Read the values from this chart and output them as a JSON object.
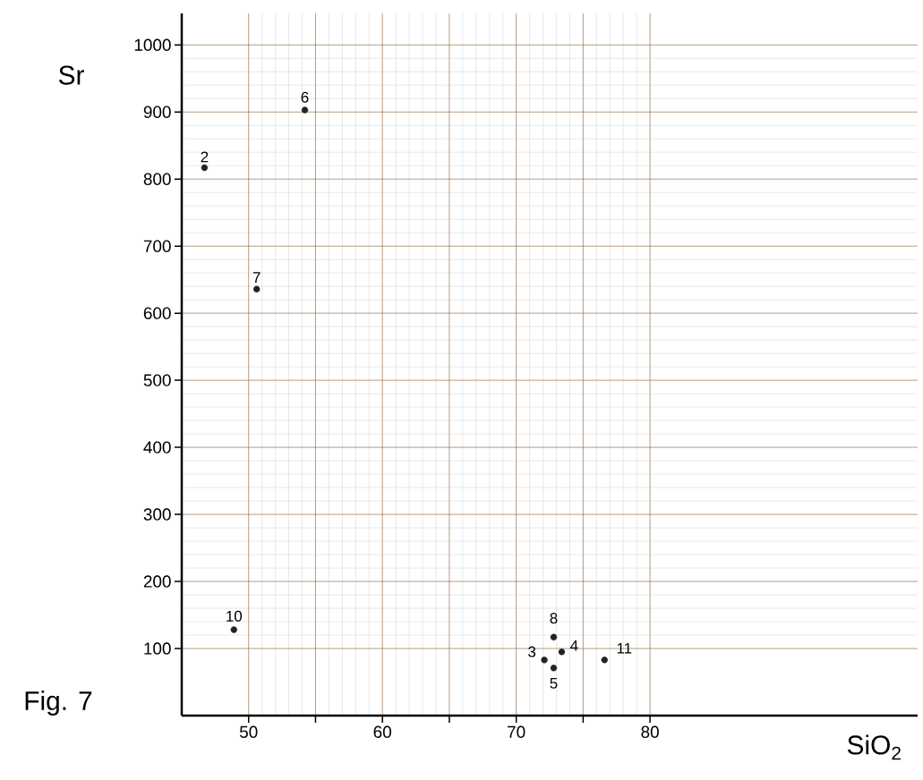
{
  "chart_data": {
    "type": "scatter",
    "xlabel": "SiO$_{2}$",
    "ylabel": "Sr",
    "x": [
      46.7,
      54.2,
      50.6,
      48.9,
      72.8,
      72.1,
      73.4,
      72.8,
      76.6
    ],
    "values": [
      817,
      903,
      636,
      128,
      117,
      83,
      95,
      71,
      83
    ],
    "color": "#222222",
    "marker": "circle",
    "xlim": [
      45,
      100
    ],
    "ylim": [
      0,
      1047
    ],
    "xticks": [
      {
        "value": 50,
        "label": "50"
      },
      {
        "value": 55,
        "label": null
      },
      {
        "value": 60,
        "label": "60"
      },
      {
        "value": 65,
        "label": null
      },
      {
        "value": 70,
        "label": "70"
      },
      {
        "value": 75,
        "label": null
      },
      {
        "value": 80,
        "label": "80"
      }
    ],
    "yticks": [
      100,
      200,
      300,
      400,
      500,
      600,
      700,
      800,
      900,
      1000
    ],
    "grid": true,
    "annotations": [
      {
        "text": "2",
        "x": 46.7,
        "y": 817
      },
      {
        "text": "6",
        "x": 54.2,
        "y": 903
      },
      {
        "text": "7",
        "x": 50.6,
        "y": 636
      },
      {
        "text": "10",
        "x": 48.9,
        "y": 128
      },
      {
        "text": "8",
        "x": 72.8,
        "y": 117
      },
      {
        "text": "3",
        "x": 72.1,
        "y": 83
      },
      {
        "text": "4",
        "x": 73.4,
        "y": 95
      },
      {
        "text": "5",
        "x": 72.8,
        "y": 71
      },
      {
        "text": "11",
        "x": 76.6,
        "y": 83
      },
      "Fig. 7"
    ]
  }
}
